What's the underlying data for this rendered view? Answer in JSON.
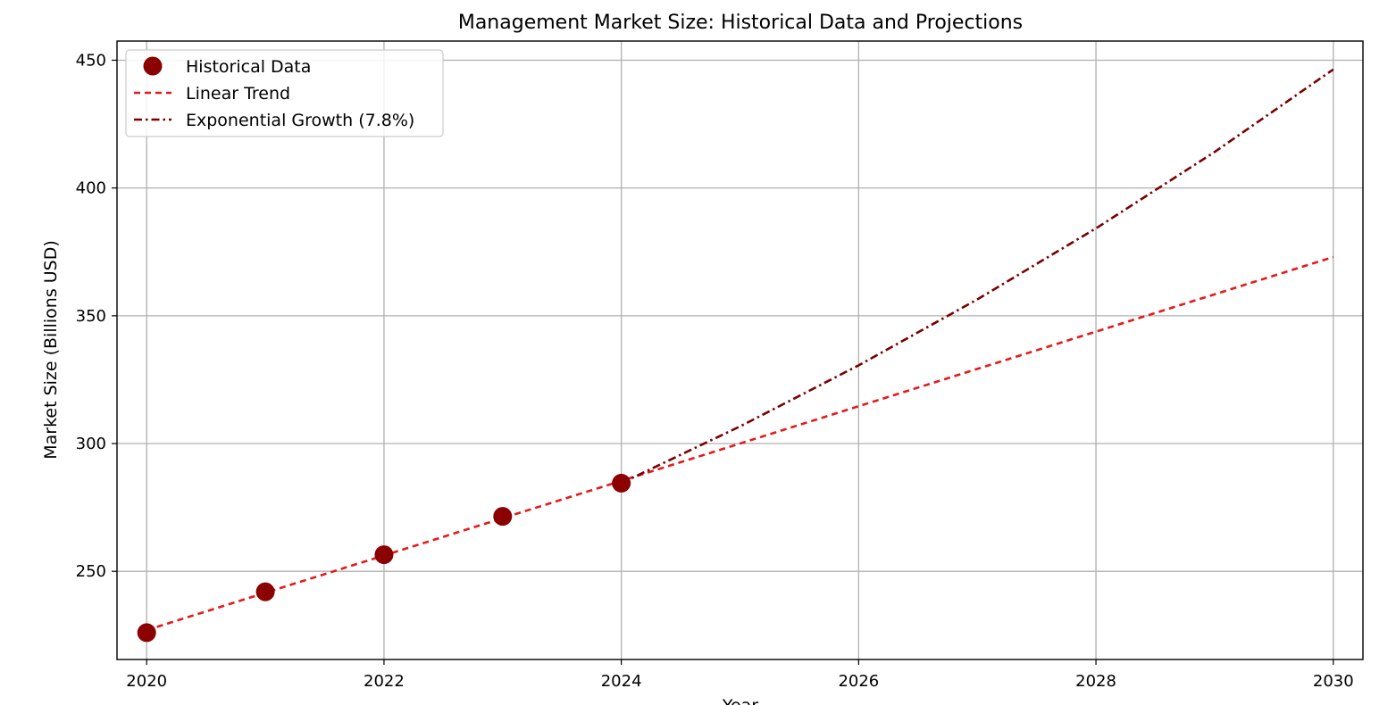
{
  "chart_data": {
    "type": "line",
    "title": "Management Market Size: Historical Data and Projections",
    "xlabel": "Year",
    "ylabel": "Market Size (Billions USD)",
    "xlim": [
      2019.75,
      2030.25
    ],
    "ylim": [
      215.5,
      457.5
    ],
    "x_ticks": [
      "2020",
      "2022",
      "2024",
      "2026",
      "2028",
      "2030"
    ],
    "y_ticks": [
      "250",
      "300",
      "350",
      "400",
      "450"
    ],
    "grid": true,
    "legend_position": "top-left",
    "series": [
      {
        "name": "Historical Data",
        "kind": "scatter",
        "color": "#8b0000",
        "x": [
          2020,
          2021,
          2022,
          2023,
          2024
        ],
        "y": [
          226,
          242,
          256.5,
          271.5,
          284.5
        ]
      },
      {
        "name": "Linear Trend",
        "kind": "line",
        "style": "dashed",
        "color": "#e31a1c",
        "x": [
          2020,
          2030
        ],
        "y": [
          227,
          373
        ]
      },
      {
        "name": "Exponential Growth (7.8%)",
        "kind": "line",
        "style": "dashdot",
        "color": "#7a0000",
        "x": [
          2024,
          2025,
          2026,
          2027,
          2028,
          2029,
          2030
        ],
        "y": [
          284.5,
          306.7,
          330.6,
          356.4,
          384.2,
          414.1,
          446.4
        ]
      }
    ]
  }
}
